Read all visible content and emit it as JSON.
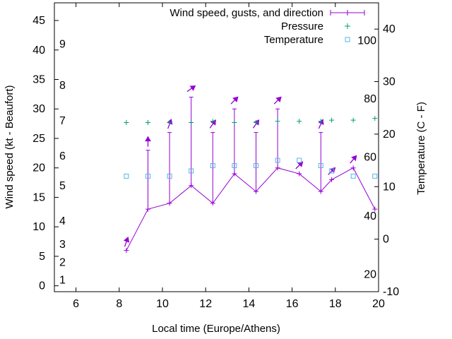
{
  "chart_data": {
    "type": "line",
    "xlabel": "Local time (Europe/Athens)",
    "ylabel_left": "Wind speed (kt - Beaufort)",
    "ylabel_right": "Temperature (C - F)",
    "xlim": [
      5,
      20
    ],
    "ylim_left": [
      -1,
      48
    ],
    "ylim_right": [
      -10,
      45
    ],
    "x_ticks": [
      6,
      8,
      10,
      12,
      14,
      16,
      18,
      20
    ],
    "y_ticks_left": [
      0,
      5,
      10,
      15,
      20,
      25,
      30,
      35,
      40,
      45
    ],
    "y_ticks_right": [
      -10,
      0,
      10,
      20,
      30,
      40
    ],
    "beaufort_labels": [
      {
        "text": "1",
        "kt": 1
      },
      {
        "text": "2",
        "kt": 4
      },
      {
        "text": "3",
        "kt": 7
      },
      {
        "text": "4",
        "kt": 11
      },
      {
        "text": "5",
        "kt": 17
      },
      {
        "text": "6",
        "kt": 22
      },
      {
        "text": "7",
        "kt": 28
      },
      {
        "text": "8",
        "kt": 34
      },
      {
        "text": "9",
        "kt": 41
      }
    ],
    "fahrenheit_labels": [
      {
        "text": "20",
        "c": -6.7
      },
      {
        "text": "40",
        "c": 4.4
      },
      {
        "text": "60",
        "c": 15.6
      },
      {
        "text": "80",
        "c": 26.7
      },
      {
        "text": "100",
        "c": 37.8
      }
    ],
    "legend": [
      {
        "label": "Wind speed, gusts, and direction",
        "color": "#9400d3",
        "marker": "line-plus"
      },
      {
        "label": "Pressure",
        "color": "#009e73",
        "marker": "plus"
      },
      {
        "label": "Temperature",
        "color": "#56b4e9",
        "marker": "square"
      }
    ],
    "series": [
      {
        "name": "Wind speed, gusts, and direction",
        "color": "#9400d3",
        "x": [
          8.33,
          9.33,
          10.33,
          11.33,
          12.33,
          13.33,
          14.33,
          15.33,
          16.33,
          17.33,
          17.83,
          18.83,
          19.83
        ],
        "speed": [
          6,
          13,
          14,
          17,
          14,
          19,
          16,
          20,
          19,
          16,
          18,
          20,
          13
        ],
        "gust": [
          null,
          23,
          26,
          32,
          26,
          30,
          26,
          30,
          null,
          26,
          null,
          null,
          null
        ],
        "direction_deg": [
          200,
          180,
          200,
          235,
          215,
          225,
          215,
          225,
          225,
          205,
          225,
          220,
          null
        ]
      },
      {
        "name": "Pressure",
        "color": "#009e73",
        "x": [
          8.33,
          9.33,
          10.33,
          11.33,
          12.33,
          13.33,
          14.33,
          15.33,
          16.33,
          17.33,
          17.83,
          18.83,
          19.83
        ],
        "values_left_axis": [
          27.7,
          27.7,
          27.7,
          27.7,
          27.9,
          27.7,
          27.7,
          27.9,
          27.9,
          27.9,
          28.1,
          28.1,
          28.4
        ]
      },
      {
        "name": "Temperature",
        "color": "#56b4e9",
        "x": [
          8.33,
          9.33,
          10.33,
          11.33,
          12.33,
          13.33,
          14.33,
          15.33,
          16.33,
          17.33,
          17.83,
          18.83,
          19.83
        ],
        "values_c": [
          12,
          12,
          12,
          13,
          14,
          14,
          14,
          15,
          15,
          14,
          13,
          12,
          12
        ]
      }
    ]
  }
}
